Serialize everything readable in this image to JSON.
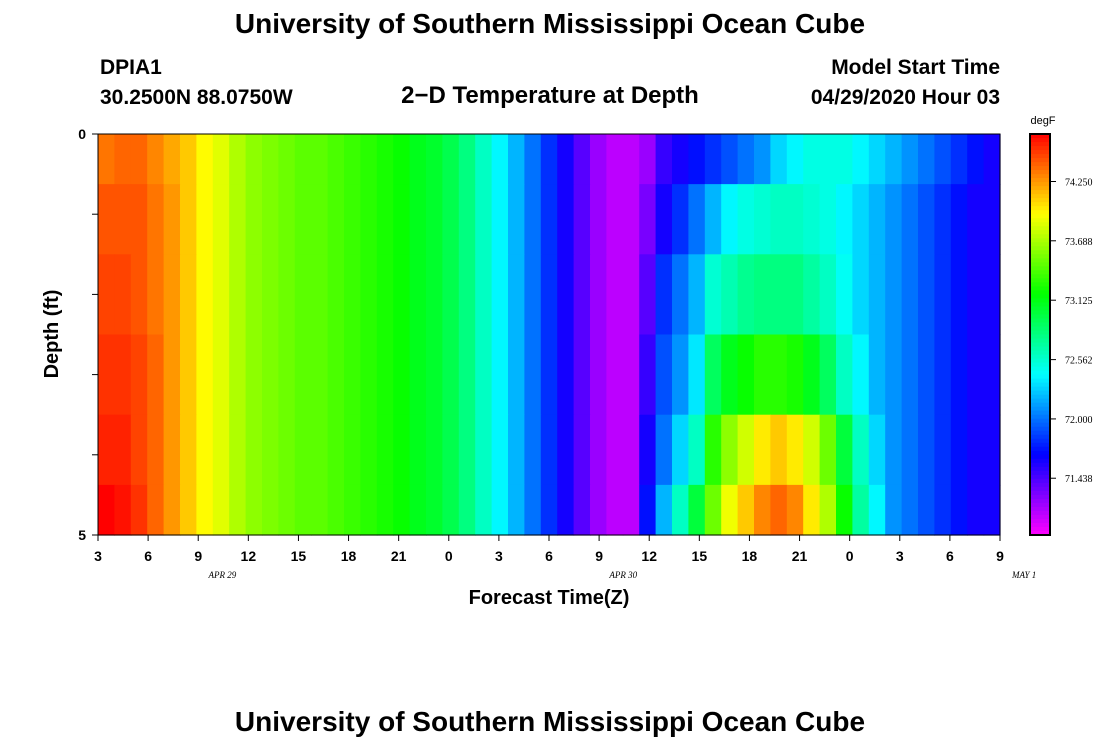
{
  "header": {
    "title": "University of Southern Mississippi Ocean Cube",
    "station_id": "DPIA1",
    "station_coords": "30.2500N 88.0750W",
    "plot_title": "2−D Temperature at Depth",
    "start_label": "Model Start Time",
    "start_value": "04/29/2020 Hour 03"
  },
  "footer": {
    "title": "University of Southern Mississippi Ocean Cube"
  },
  "chart_data": {
    "type": "heatmap",
    "title": "2−D Temperature at Depth",
    "xlabel": "Forecast Time(Z)",
    "ylabel": "Depth (ft)",
    "x_start_hour": 3,
    "x_end_hour": 57,
    "x_ticks": [
      "3",
      "6",
      "9",
      "12",
      "15",
      "18",
      "21",
      "0",
      "3",
      "6",
      "9",
      "12",
      "15",
      "18",
      "21",
      "0",
      "3",
      "6",
      "9"
    ],
    "date_labels": [
      {
        "label": "APR 29",
        "hour": 12
      },
      {
        "label": "APR 30",
        "hour": 36
      },
      {
        "label": "MAY 1",
        "hour": 60
      }
    ],
    "y_ticks": [
      "0",
      "5"
    ],
    "ylim": [
      0,
      5
    ],
    "colorbar": {
      "unit": "degF",
      "range": [
        70.9,
        74.7
      ],
      "ticks": [
        "74.250",
        "73.688",
        "73.125",
        "72.562",
        "72.000",
        "71.438"
      ],
      "tick_values": [
        74.25,
        73.688,
        73.125,
        72.562,
        72.0,
        71.438
      ]
    },
    "depth_levels": [
      0.25,
      1.0,
      2.0,
      3.0,
      4.0,
      4.75
    ],
    "columns_per_layer": [
      [
        74.35,
        74.4,
        74.4,
        74.3,
        74.2,
        74.1,
        73.95,
        73.85,
        73.7,
        73.6,
        73.55,
        73.5,
        73.45,
        73.45,
        73.4,
        73.35,
        73.3,
        73.25,
        73.2,
        73.1,
        73.05,
        72.95,
        72.8,
        72.6,
        72.4,
        72.2,
        72.0,
        71.8,
        71.6,
        71.4,
        71.2,
        71.1,
        71.1,
        71.2,
        71.5,
        71.6,
        71.7,
        71.8,
        71.9,
        72.0,
        72.1,
        72.3,
        72.4,
        72.5,
        72.5,
        72.5,
        72.4,
        72.3,
        72.2,
        72.1,
        72.0,
        71.9,
        71.8,
        71.7,
        71.6
      ],
      [
        74.45,
        74.45,
        74.45,
        74.35,
        74.25,
        74.1,
        73.95,
        73.85,
        73.7,
        73.6,
        73.55,
        73.5,
        73.45,
        73.45,
        73.4,
        73.35,
        73.3,
        73.25,
        73.2,
        73.1,
        73.05,
        72.95,
        72.8,
        72.6,
        72.4,
        72.2,
        72.0,
        71.8,
        71.6,
        71.4,
        71.2,
        71.1,
        71.1,
        71.3,
        71.6,
        71.8,
        72.0,
        72.2,
        72.4,
        72.5,
        72.55,
        72.6,
        72.6,
        72.55,
        72.5,
        72.4,
        72.3,
        72.2,
        72.1,
        72.0,
        71.9,
        71.8,
        71.7,
        71.6,
        71.6
      ],
      [
        74.5,
        74.5,
        74.45,
        74.35,
        74.25,
        74.1,
        73.95,
        73.85,
        73.7,
        73.6,
        73.55,
        73.5,
        73.45,
        73.45,
        73.4,
        73.35,
        73.3,
        73.25,
        73.2,
        73.1,
        73.05,
        72.95,
        72.8,
        72.6,
        72.4,
        72.2,
        72.0,
        71.8,
        71.6,
        71.4,
        71.2,
        71.1,
        71.1,
        71.4,
        71.8,
        72.0,
        72.2,
        72.55,
        72.65,
        72.75,
        72.8,
        72.8,
        72.8,
        72.7,
        72.6,
        72.45,
        72.3,
        72.2,
        72.1,
        72.0,
        71.9,
        71.8,
        71.7,
        71.6,
        71.6
      ],
      [
        74.55,
        74.55,
        74.5,
        74.4,
        74.25,
        74.1,
        73.95,
        73.85,
        73.7,
        73.6,
        73.55,
        73.5,
        73.45,
        73.45,
        73.4,
        73.35,
        73.3,
        73.25,
        73.2,
        73.1,
        73.05,
        72.95,
        72.8,
        72.6,
        72.4,
        72.2,
        72.0,
        71.8,
        71.6,
        71.4,
        71.2,
        71.1,
        71.1,
        71.5,
        71.9,
        72.1,
        72.35,
        72.9,
        73.1,
        73.2,
        73.3,
        73.3,
        73.25,
        73.1,
        72.9,
        72.6,
        72.4,
        72.2,
        72.1,
        72.0,
        71.9,
        71.8,
        71.7,
        71.6,
        71.6
      ],
      [
        74.6,
        74.6,
        74.5,
        74.4,
        74.25,
        74.1,
        73.95,
        73.85,
        73.7,
        73.6,
        73.55,
        73.5,
        73.45,
        73.45,
        73.4,
        73.35,
        73.3,
        73.25,
        73.2,
        73.1,
        73.05,
        72.95,
        72.8,
        72.6,
        72.4,
        72.2,
        72.0,
        71.8,
        71.6,
        71.4,
        71.2,
        71.1,
        71.1,
        71.6,
        72.0,
        72.3,
        72.6,
        73.3,
        73.6,
        73.8,
        74.0,
        74.1,
        74.0,
        73.8,
        73.5,
        73.0,
        72.6,
        72.3,
        72.1,
        72.0,
        71.9,
        71.8,
        71.7,
        71.6,
        71.6
      ],
      [
        74.7,
        74.65,
        74.55,
        74.4,
        74.25,
        74.1,
        73.95,
        73.85,
        73.7,
        73.6,
        73.55,
        73.5,
        73.45,
        73.45,
        73.4,
        73.35,
        73.3,
        73.25,
        73.2,
        73.1,
        73.05,
        72.95,
        72.8,
        72.6,
        72.4,
        72.2,
        72.0,
        71.8,
        71.6,
        71.4,
        71.2,
        71.1,
        71.1,
        71.7,
        72.2,
        72.6,
        73.0,
        73.5,
        73.9,
        74.1,
        74.3,
        74.4,
        74.3,
        74.0,
        73.7,
        73.2,
        72.7,
        72.4,
        72.1,
        72.0,
        71.9,
        71.8,
        71.7,
        71.6,
        71.6
      ]
    ]
  }
}
